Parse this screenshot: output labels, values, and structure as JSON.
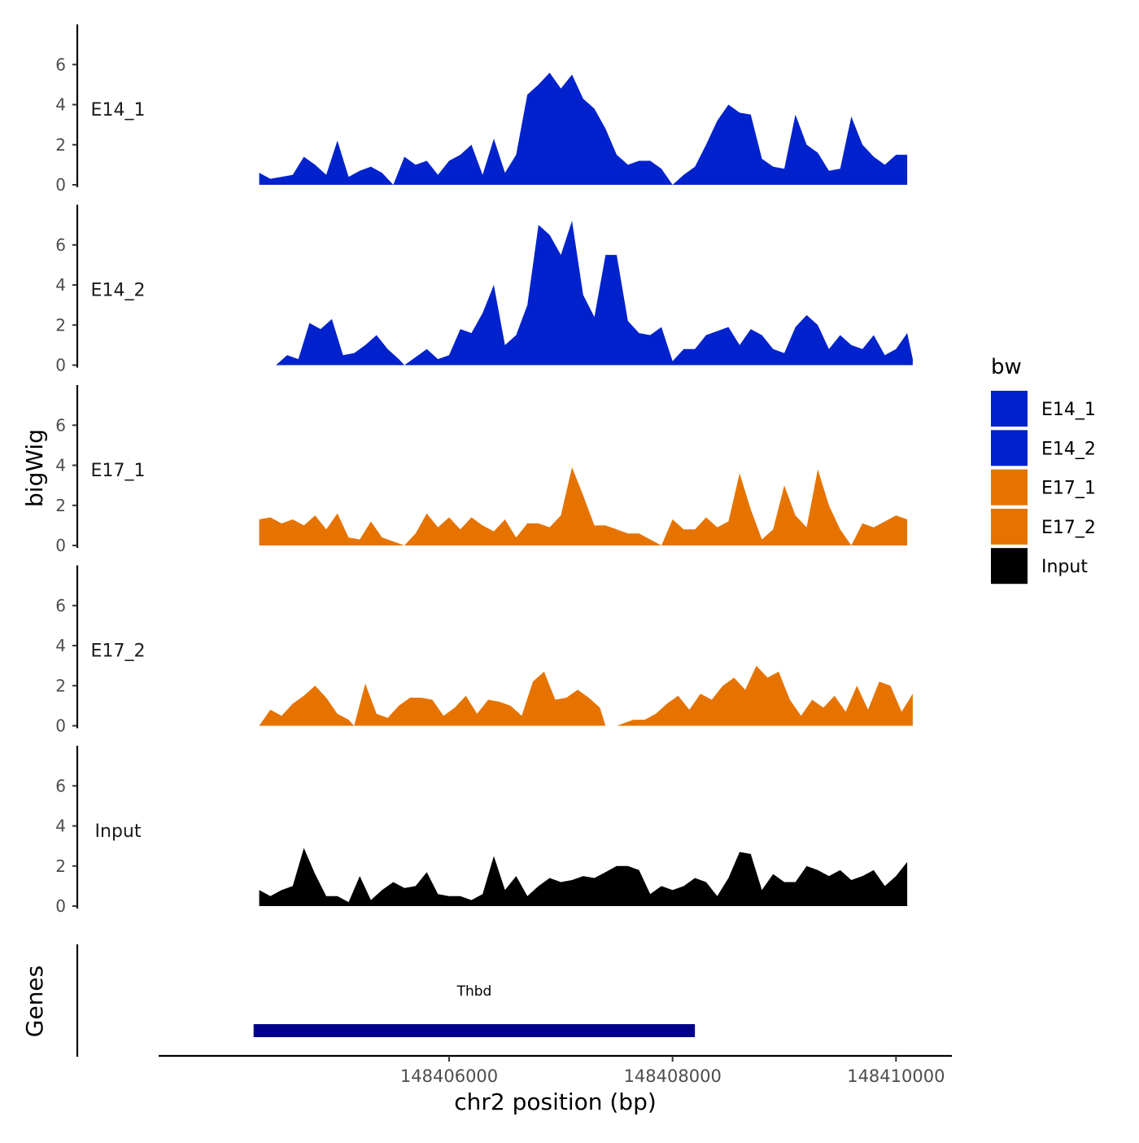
{
  "chart_data": {
    "type": "area",
    "ylabel": "bigWig",
    "xlabel": "chr2 position (bp)",
    "genes_label": "Genes",
    "legend_title": "bw",
    "legend_position": "right",
    "xlim": [
      148403400,
      148410500
    ],
    "ylim": [
      0,
      7.8
    ],
    "x_ticks": [
      148406000,
      148408000,
      148410000
    ],
    "y_ticks": [
      0,
      2,
      4,
      6
    ],
    "legend": [
      {
        "name": "E14_1",
        "color": "#0022CC"
      },
      {
        "name": "E14_2",
        "color": "#0022CC"
      },
      {
        "name": "E17_1",
        "color": "#E67300"
      },
      {
        "name": "E17_2",
        "color": "#E67300"
      },
      {
        "name": "Input",
        "color": "#000000"
      }
    ],
    "series": [
      {
        "name": "E14_1",
        "color": "#0022CC",
        "x": [
          148404300,
          148404400,
          148404500,
          148404600,
          148404700,
          148404800,
          148404900,
          148405000,
          148405100,
          148405200,
          148405300,
          148405400,
          148405500,
          148405600,
          148405700,
          148405800,
          148405900,
          148406000,
          148406100,
          148406200,
          148406300,
          148406400,
          148406500,
          148406600,
          148406700,
          148406800,
          148406900,
          148407000,
          148407100,
          148407200,
          148407300,
          148407400,
          148407500,
          148407600,
          148407700,
          148407800,
          148407900,
          148408000,
          148408100,
          148408200,
          148408300,
          148408400,
          148408500,
          148408600,
          148408700,
          148408800,
          148408900,
          148409000,
          148409100,
          148409200,
          148409300,
          148409400,
          148409500,
          148409600,
          148409700,
          148409800,
          148409900,
          148410000,
          148410100
        ],
        "y": [
          0.6,
          0.3,
          0.4,
          0.5,
          1.4,
          1.0,
          0.5,
          2.2,
          0.4,
          0.7,
          0.9,
          0.6,
          0.0,
          1.4,
          1.0,
          1.2,
          0.5,
          1.2,
          1.5,
          2.0,
          0.5,
          2.3,
          0.6,
          1.5,
          4.5,
          5.0,
          5.6,
          4.8,
          5.5,
          4.3,
          3.8,
          2.8,
          1.5,
          1.0,
          1.2,
          1.2,
          0.8,
          0.0,
          0.5,
          0.9,
          2.0,
          3.2,
          4.0,
          3.6,
          3.5,
          1.3,
          0.9,
          0.8,
          3.5,
          2.0,
          1.6,
          0.7,
          0.8,
          3.4,
          2.0,
          1.4,
          1.0,
          1.5,
          1.5
        ]
      },
      {
        "name": "E14_2",
        "color": "#0022CC",
        "x": [
          148404450,
          148404550,
          148404650,
          148404750,
          148404850,
          148404950,
          148405050,
          148405150,
          148405250,
          148405350,
          148405450,
          148405550,
          148405600,
          148405700,
          148405800,
          148405900,
          148406000,
          148406100,
          148406200,
          148406300,
          148406400,
          148406500,
          148406600,
          148406700,
          148406800,
          148406900,
          148407000,
          148407100,
          148407200,
          148407300,
          148407400,
          148407500,
          148407600,
          148407700,
          148407800,
          148407900,
          148408000,
          148408100,
          148408200,
          148408300,
          148408400,
          148408500,
          148408600,
          148408700,
          148408800,
          148408900,
          148409000,
          148409100,
          148409200,
          148409300,
          148409400,
          148409500,
          148409600,
          148409700,
          148409800,
          148409900,
          148410000,
          148410100,
          148410150
        ],
        "y": [
          0.0,
          0.5,
          0.3,
          2.1,
          1.8,
          2.3,
          0.5,
          0.6,
          1.0,
          1.5,
          0.8,
          0.3,
          0.0,
          0.4,
          0.8,
          0.3,
          0.5,
          1.8,
          1.6,
          2.6,
          4.0,
          1.0,
          1.5,
          3.0,
          7.0,
          6.5,
          5.5,
          7.2,
          3.5,
          2.4,
          5.5,
          5.5,
          2.2,
          1.6,
          1.5,
          1.9,
          0.2,
          0.8,
          0.8,
          1.5,
          1.7,
          1.9,
          1.0,
          1.8,
          1.5,
          0.8,
          0.6,
          1.9,
          2.5,
          2.0,
          0.8,
          1.5,
          1.0,
          0.8,
          1.5,
          0.5,
          0.8,
          1.6,
          0.3
        ]
      },
      {
        "name": "E17_1",
        "color": "#E67300",
        "x": [
          148404300,
          148404400,
          148404500,
          148404600,
          148404700,
          148404800,
          148404900,
          148405000,
          148405100,
          148405200,
          148405300,
          148405400,
          148405500,
          148405600,
          148405700,
          148405800,
          148405900,
          148406000,
          148406100,
          148406200,
          148406300,
          148406400,
          148406500,
          148406600,
          148406700,
          148406800,
          148406900,
          148407000,
          148407100,
          148407200,
          148407300,
          148407400,
          148407500,
          148407600,
          148407700,
          148407800,
          148407900,
          148408000,
          148408100,
          148408200,
          148408300,
          148408400,
          148408500,
          148408600,
          148408700,
          148408800,
          148408900,
          148409000,
          148409100,
          148409200,
          148409300,
          148409400,
          148409500,
          148409600,
          148409700,
          148409800,
          148409900,
          148410000,
          148410100
        ],
        "y": [
          1.3,
          1.4,
          1.1,
          1.3,
          1.0,
          1.5,
          0.8,
          1.6,
          0.4,
          0.3,
          1.2,
          0.4,
          0.2,
          0.0,
          0.6,
          1.6,
          0.9,
          1.4,
          0.8,
          1.4,
          1.0,
          0.7,
          1.3,
          0.4,
          1.1,
          1.1,
          0.9,
          1.5,
          3.9,
          2.5,
          1.0,
          1.0,
          0.8,
          0.6,
          0.6,
          0.3,
          0.0,
          1.3,
          0.8,
          0.8,
          1.4,
          0.9,
          1.2,
          3.6,
          1.8,
          0.3,
          0.8,
          3.0,
          1.5,
          0.9,
          3.8,
          2.0,
          0.8,
          0.0,
          1.1,
          0.9,
          1.2,
          1.5,
          1.3
        ]
      },
      {
        "name": "E17_2",
        "color": "#E67300",
        "x": [
          148404300,
          148404400,
          148404500,
          148404600,
          148404700,
          148404800,
          148404900,
          148405000,
          148405100,
          148405150,
          148405250,
          148405350,
          148405450,
          148405550,
          148405650,
          148405750,
          148405850,
          148405950,
          148406050,
          148406150,
          148406250,
          148406350,
          148406450,
          148406550,
          148406650,
          148406750,
          148406850,
          148406950,
          148407050,
          148407150,
          148407250,
          148407350,
          148407400,
          148407500,
          148407650,
          148407750,
          148407850,
          148407950,
          148408050,
          148408150,
          148408250,
          148408350,
          148408450,
          148408550,
          148408650,
          148408750,
          148408850,
          148408950,
          148409050,
          148409150,
          148409250,
          148409350,
          148409450,
          148409550,
          148409650,
          148409750,
          148409850,
          148409950,
          148410050,
          148410150
        ],
        "y": [
          0.0,
          0.8,
          0.5,
          1.1,
          1.5,
          2.0,
          1.4,
          0.6,
          0.3,
          0.0,
          2.1,
          0.6,
          0.4,
          1.0,
          1.4,
          1.4,
          1.3,
          0.5,
          0.9,
          1.5,
          0.6,
          1.3,
          1.2,
          1.0,
          0.5,
          2.2,
          2.7,
          1.3,
          1.4,
          1.8,
          1.4,
          0.9,
          0.0,
          0.0,
          0.3,
          0.3,
          0.6,
          1.1,
          1.5,
          0.8,
          1.6,
          1.3,
          2.0,
          2.4,
          1.8,
          3.0,
          2.4,
          2.7,
          1.3,
          0.5,
          1.3,
          0.9,
          1.5,
          0.7,
          2.0,
          0.8,
          2.2,
          2.0,
          0.7,
          1.6
        ]
      },
      {
        "name": "Input",
        "color": "#000000",
        "x": [
          148404300,
          148404400,
          148404500,
          148404600,
          148404700,
          148404800,
          148404900,
          148405000,
          148405100,
          148405200,
          148405300,
          148405400,
          148405500,
          148405600,
          148405700,
          148405800,
          148405900,
          148406000,
          148406100,
          148406200,
          148406300,
          148406400,
          148406500,
          148406600,
          148406700,
          148406800,
          148406900,
          148407000,
          148407100,
          148407200,
          148407300,
          148407400,
          148407500,
          148407600,
          148407700,
          148407800,
          148407900,
          148408000,
          148408100,
          148408200,
          148408300,
          148408400,
          148408500,
          148408600,
          148408700,
          148408800,
          148408900,
          148409000,
          148409100,
          148409200,
          148409300,
          148409400,
          148409500,
          148409600,
          148409700,
          148409800,
          148409900,
          148410000,
          148410100
        ],
        "y": [
          0.8,
          0.5,
          0.8,
          1.0,
          2.9,
          1.6,
          0.5,
          0.5,
          0.2,
          1.5,
          0.3,
          0.8,
          1.2,
          0.9,
          1.0,
          1.7,
          0.6,
          0.5,
          0.5,
          0.3,
          0.6,
          2.5,
          0.8,
          1.5,
          0.5,
          1.0,
          1.4,
          1.2,
          1.3,
          1.5,
          1.4,
          1.7,
          2.0,
          2.0,
          1.8,
          0.6,
          1.0,
          0.8,
          1.0,
          1.4,
          1.2,
          0.5,
          1.4,
          2.7,
          2.6,
          0.8,
          1.6,
          1.2,
          1.2,
          2.0,
          1.8,
          1.5,
          1.8,
          1.3,
          1.5,
          1.8,
          1.0,
          1.5,
          2.2
        ]
      }
    ],
    "genes": [
      {
        "name": "Thbd",
        "start": 148404250,
        "end": 148408200,
        "color": "#00008B"
      }
    ]
  }
}
